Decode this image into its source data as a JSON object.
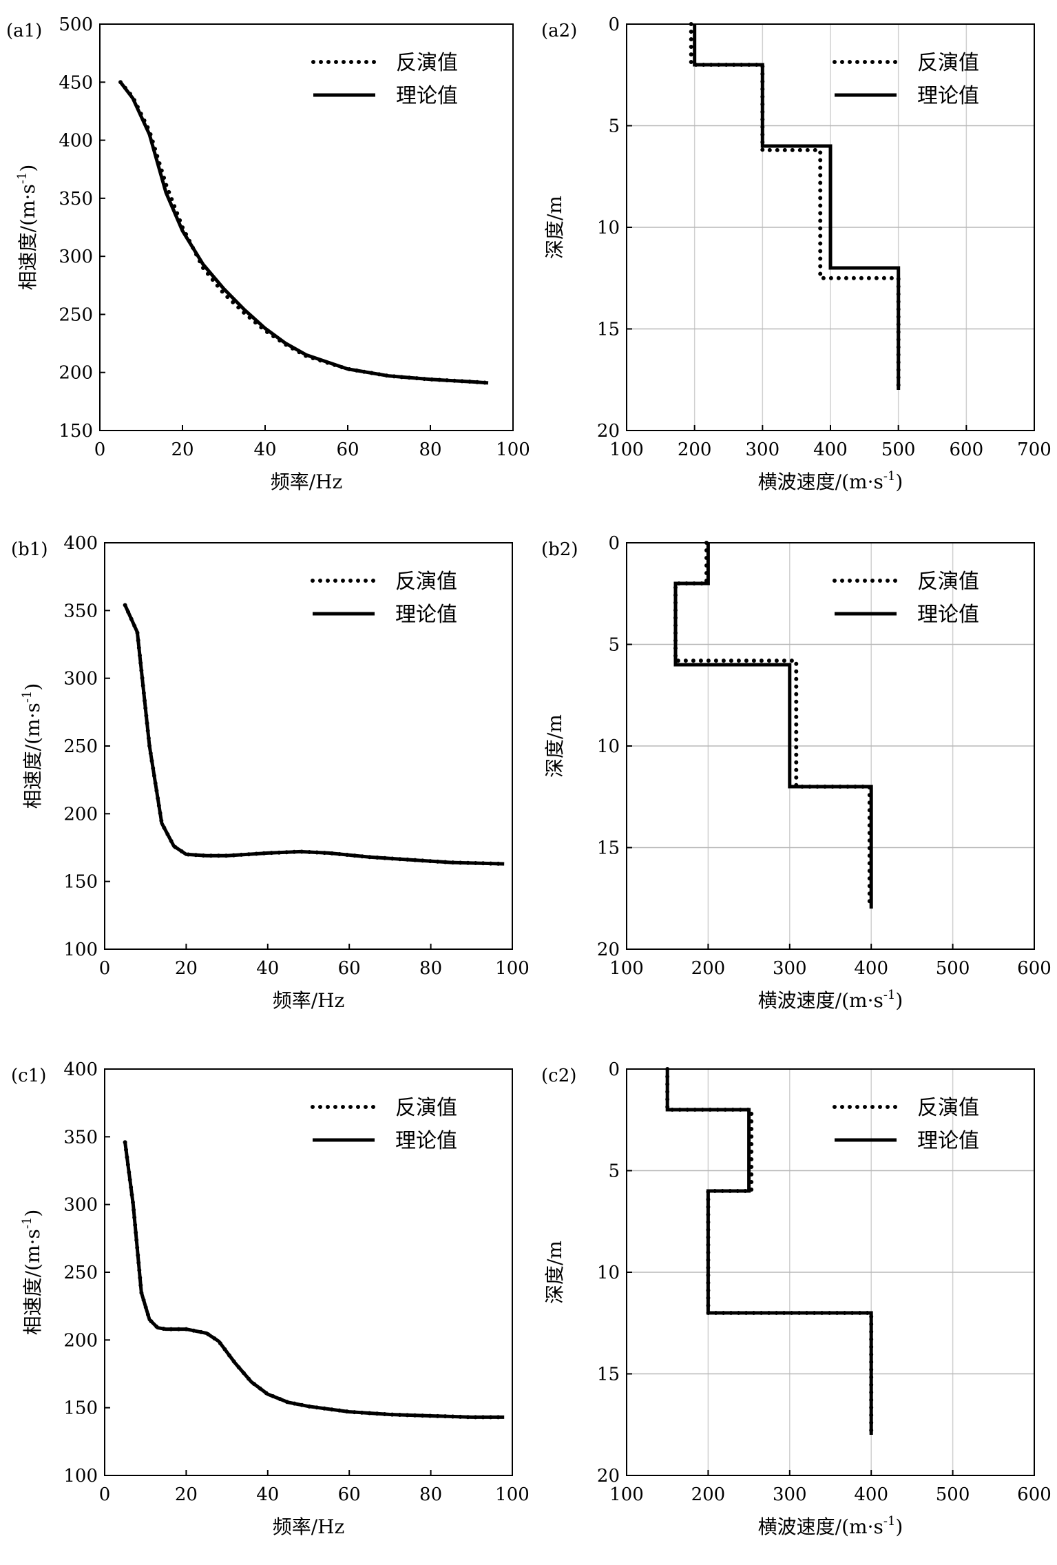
{
  "chart_data": [
    {
      "id": "a1",
      "panel_label": "(a1)",
      "type": "line",
      "xlabel": "频率/Hz",
      "ylabel": "相速度/(m·s",
      "ylabel_sup": "-1",
      "ylabel_close": ")",
      "xlim": [
        0,
        100
      ],
      "ylim": [
        150,
        500
      ],
      "xticks": [
        0,
        20,
        40,
        60,
        80,
        100
      ],
      "yticks": [
        150,
        200,
        250,
        300,
        350,
        400,
        450,
        500
      ],
      "y_inverted": false,
      "grid": false,
      "legend": "top-right",
      "series": [
        {
          "name": "反演值",
          "style": "dotted",
          "x": [
            5,
            8,
            12,
            16,
            20,
            25,
            30,
            35,
            40,
            45,
            50,
            60,
            70,
            80,
            90,
            94
          ],
          "y": [
            450,
            437,
            408,
            362,
            325,
            290,
            268,
            251,
            236,
            224,
            214,
            203,
            197,
            194,
            192,
            191
          ]
        },
        {
          "name": "理论值",
          "style": "solid",
          "x": [
            5,
            8,
            12,
            16,
            20,
            25,
            30,
            35,
            40,
            45,
            50,
            60,
            70,
            80,
            90,
            94
          ],
          "y": [
            450,
            436,
            405,
            355,
            322,
            293,
            272,
            254,
            238,
            225,
            215,
            203,
            197,
            194,
            192,
            191
          ]
        }
      ]
    },
    {
      "id": "a2",
      "panel_label": "(a2)",
      "type": "line",
      "xlabel": "横波速度/(m·s",
      "xlabel_sup": "-1",
      "xlabel_close": ")",
      "ylabel": "深度/m",
      "xlim": [
        100,
        700
      ],
      "ylim": [
        0,
        20
      ],
      "xticks": [
        100,
        200,
        300,
        400,
        500,
        600,
        700
      ],
      "yticks": [
        0,
        5,
        10,
        15,
        20
      ],
      "y_inverted": true,
      "grid": true,
      "legend": "top-right",
      "series": [
        {
          "name": "反演值",
          "style": "dotted",
          "x": [
            195,
            195,
            300,
            300,
            385,
            385,
            500,
            500
          ],
          "y": [
            0,
            2,
            2,
            6.2,
            6.2,
            12.5,
            12.5,
            18
          ]
        },
        {
          "name": "理论值",
          "style": "solid",
          "x": [
            200,
            200,
            300,
            300,
            400,
            400,
            500,
            500
          ],
          "y": [
            0,
            2,
            2,
            6,
            6,
            12,
            12,
            18
          ]
        }
      ]
    },
    {
      "id": "b1",
      "panel_label": "(b1)",
      "type": "line",
      "xlabel": "频率/Hz",
      "ylabel": "相速度/(m·s",
      "ylabel_sup": "-1",
      "ylabel_close": ")",
      "xlim": [
        0,
        100
      ],
      "ylim": [
        100,
        400
      ],
      "xticks": [
        0,
        20,
        40,
        60,
        80,
        100
      ],
      "yticks": [
        100,
        150,
        200,
        250,
        300,
        350,
        400
      ],
      "y_inverted": false,
      "grid": false,
      "legend": "top-right",
      "series": [
        {
          "name": "反演值",
          "style": "dotted",
          "x": [
            5,
            8,
            11,
            14,
            17,
            20,
            25,
            30,
            40,
            48,
            55,
            65,
            75,
            85,
            98
          ],
          "y": [
            354,
            334,
            250,
            193,
            176,
            170,
            169,
            169,
            171,
            172,
            171,
            168,
            166,
            164,
            163
          ]
        },
        {
          "name": "理论值",
          "style": "solid",
          "x": [
            5,
            8,
            11,
            14,
            17,
            20,
            25,
            30,
            40,
            48,
            55,
            65,
            75,
            85,
            98
          ],
          "y": [
            354,
            334,
            250,
            193,
            176,
            170,
            169,
            169,
            171,
            172,
            171,
            168,
            166,
            164,
            163
          ]
        }
      ]
    },
    {
      "id": "b2",
      "panel_label": "(b2)",
      "type": "line",
      "xlabel": "横波速度/(m·s",
      "xlabel_sup": "-1",
      "xlabel_close": ")",
      "ylabel": "深度/m",
      "xlim": [
        100,
        600
      ],
      "ylim": [
        0,
        20
      ],
      "xticks": [
        100,
        200,
        300,
        400,
        500,
        600
      ],
      "yticks": [
        0,
        5,
        10,
        15,
        20
      ],
      "y_inverted": true,
      "grid": true,
      "legend": "top-right",
      "series": [
        {
          "name": "反演值",
          "style": "dotted",
          "x": [
            198,
            198,
            160,
            160,
            308,
            308,
            398,
            398
          ],
          "y": [
            0,
            2,
            2,
            5.8,
            5.8,
            12,
            12,
            18
          ]
        },
        {
          "name": "理论值",
          "style": "solid",
          "x": [
            200,
            200,
            160,
            160,
            300,
            300,
            400,
            400
          ],
          "y": [
            0,
            2,
            2,
            6,
            6,
            12,
            12,
            18
          ]
        }
      ]
    },
    {
      "id": "c1",
      "panel_label": "(c1)",
      "type": "line",
      "xlabel": "频率/Hz",
      "ylabel": "相速度/(m·s",
      "ylabel_sup": "-1",
      "ylabel_close": ")",
      "xlim": [
        0,
        100
      ],
      "ylim": [
        100,
        400
      ],
      "xticks": [
        0,
        20,
        40,
        60,
        80,
        100
      ],
      "yticks": [
        100,
        150,
        200,
        250,
        300,
        350,
        400
      ],
      "y_inverted": false,
      "grid": false,
      "legend": "top-right",
      "series": [
        {
          "name": "反演值",
          "style": "dotted",
          "x": [
            5,
            7,
            9,
            11,
            13,
            15,
            20,
            25,
            28,
            32,
            36,
            40,
            45,
            50,
            60,
            70,
            80,
            90,
            98
          ],
          "y": [
            346,
            300,
            235,
            215,
            209,
            208,
            208,
            205,
            199,
            183,
            169,
            160,
            154,
            151,
            147,
            145,
            144,
            143,
            143
          ]
        },
        {
          "name": "理论值",
          "style": "solid",
          "x": [
            5,
            7,
            9,
            11,
            13,
            15,
            20,
            25,
            28,
            32,
            36,
            40,
            45,
            50,
            60,
            70,
            80,
            90,
            98
          ],
          "y": [
            346,
            300,
            235,
            215,
            209,
            208,
            208,
            205,
            199,
            183,
            169,
            160,
            154,
            151,
            147,
            145,
            144,
            143,
            143
          ]
        }
      ]
    },
    {
      "id": "c2",
      "panel_label": "(c2)",
      "type": "line",
      "xlabel": "横波速度/(m·s",
      "xlabel_sup": "-1",
      "xlabel_close": ")",
      "ylabel": "深度/m",
      "xlim": [
        100,
        600
      ],
      "ylim": [
        0,
        20
      ],
      "xticks": [
        100,
        200,
        300,
        400,
        500,
        600
      ],
      "yticks": [
        0,
        5,
        10,
        15,
        20
      ],
      "y_inverted": true,
      "grid": true,
      "legend": "top-right",
      "series": [
        {
          "name": "反演值",
          "style": "dotted",
          "x": [
            150,
            150,
            253,
            253,
            200,
            200,
            400,
            400
          ],
          "y": [
            0,
            2,
            2,
            6,
            6,
            12,
            12,
            18
          ]
        },
        {
          "name": "理论值",
          "style": "solid",
          "x": [
            150,
            150,
            250,
            250,
            200,
            200,
            400,
            400
          ],
          "y": [
            0,
            2,
            2,
            6,
            6,
            12,
            12,
            18
          ]
        }
      ]
    }
  ]
}
